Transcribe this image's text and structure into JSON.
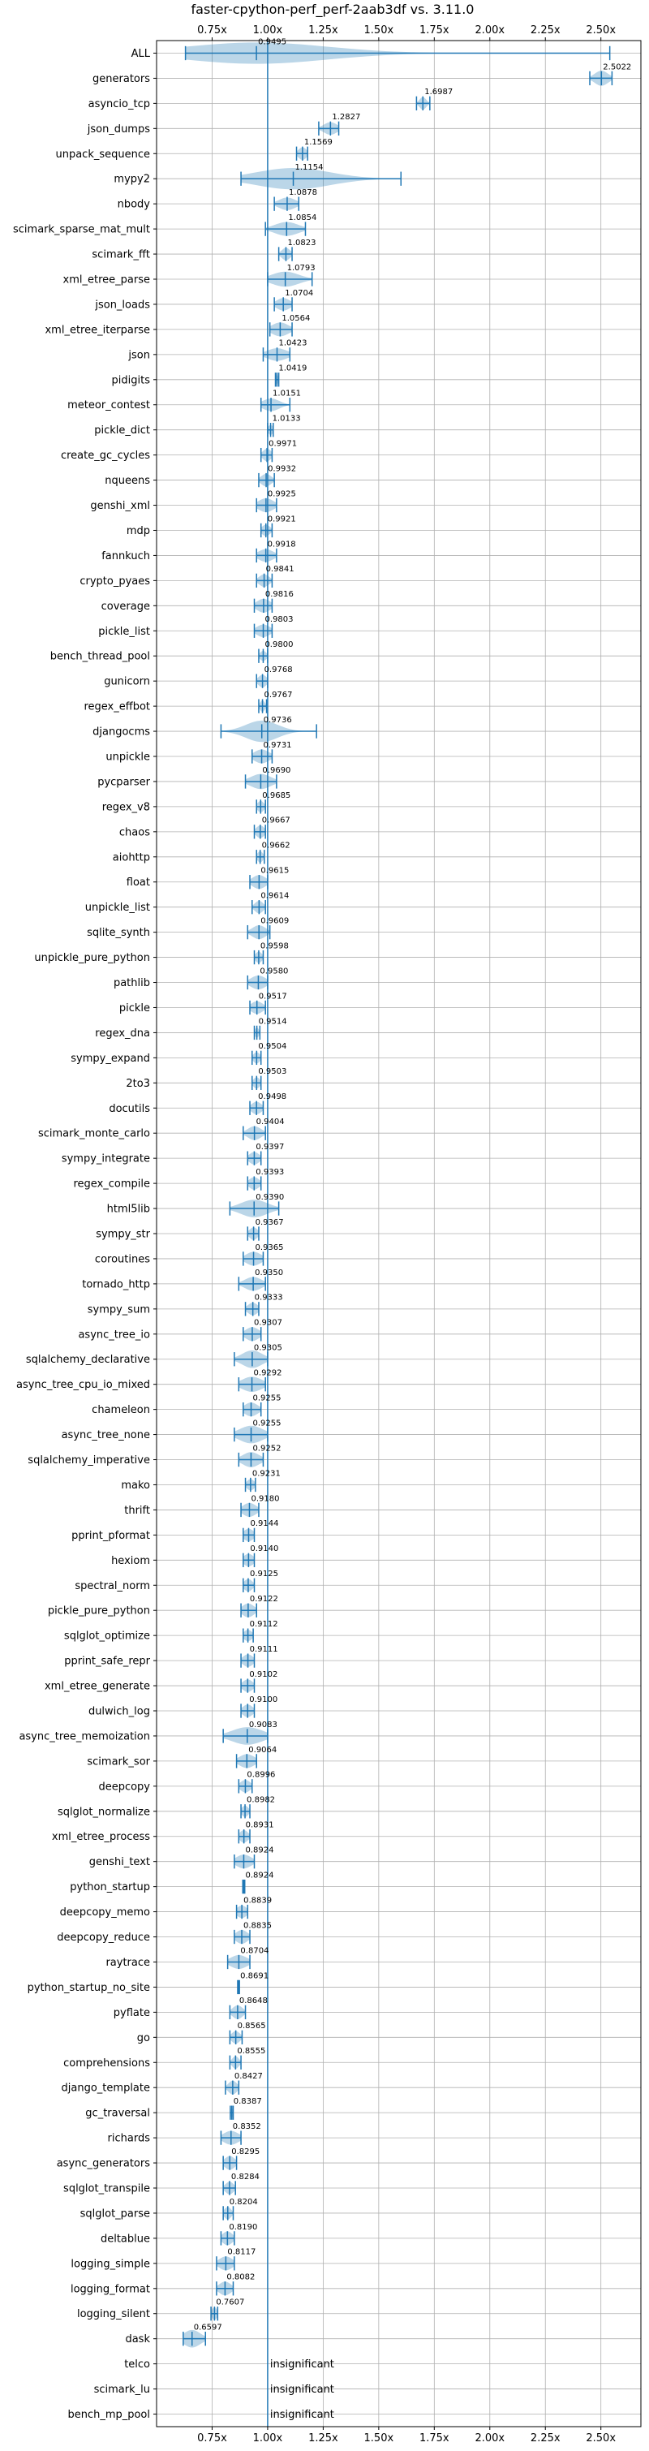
{
  "chart_data": {
    "type": "violin",
    "title": "faster-cpython-perf_perf-2aab3df vs. 3.11.0",
    "xlabel": "",
    "ylabel": "",
    "xlim": [
      0.5,
      2.68
    ],
    "xticks": [
      0.75,
      1.0,
      1.25,
      1.5,
      1.75,
      2.0,
      2.25,
      2.5
    ],
    "xtick_labels": [
      "0.75x",
      "1.00x",
      "1.25x",
      "1.50x",
      "1.75x",
      "2.00x",
      "2.25x",
      "2.50x"
    ],
    "reference_line": 1.0,
    "grid": true,
    "benchmarks": [
      {
        "name": "ALL",
        "median": 0.9495,
        "min": 0.63,
        "max": 2.54,
        "q1": 0.9,
        "q3": 1.0,
        "width": 0.85
      },
      {
        "name": "generators",
        "median": 2.5022,
        "min": 2.45,
        "max": 2.55,
        "q1": 2.48,
        "q3": 2.52,
        "width": 0.6
      },
      {
        "name": "asyncio_tcp",
        "median": 1.6987,
        "min": 1.67,
        "max": 1.73,
        "q1": 1.69,
        "q3": 1.71,
        "width": 0.5
      },
      {
        "name": "json_dumps",
        "median": 1.2827,
        "min": 1.23,
        "max": 1.32,
        "q1": 1.26,
        "q3": 1.3,
        "width": 0.5
      },
      {
        "name": "unpack_sequence",
        "median": 1.1569,
        "min": 1.13,
        "max": 1.18,
        "q1": 1.145,
        "q3": 1.17,
        "width": 0.5
      },
      {
        "name": "mypy2",
        "median": 1.1154,
        "min": 0.88,
        "max": 1.6,
        "q1": 0.98,
        "q3": 1.2,
        "width": 0.85
      },
      {
        "name": "nbody",
        "median": 1.0878,
        "min": 1.03,
        "max": 1.14,
        "q1": 1.06,
        "q3": 1.11,
        "width": 0.5
      },
      {
        "name": "scimark_sparse_mat_mult",
        "median": 1.0854,
        "min": 0.99,
        "max": 1.17,
        "q1": 1.05,
        "q3": 1.12,
        "width": 0.55
      },
      {
        "name": "scimark_fft",
        "median": 1.0823,
        "min": 1.05,
        "max": 1.11,
        "q1": 1.07,
        "q3": 1.095,
        "width": 0.5
      },
      {
        "name": "xml_etree_parse",
        "median": 1.0793,
        "min": 1.0,
        "max": 1.2,
        "q1": 1.04,
        "q3": 1.12,
        "width": 0.6
      },
      {
        "name": "json_loads",
        "median": 1.0704,
        "min": 1.03,
        "max": 1.11,
        "q1": 1.05,
        "q3": 1.09,
        "width": 0.5
      },
      {
        "name": "xml_etree_iterparse",
        "median": 1.0564,
        "min": 1.01,
        "max": 1.11,
        "q1": 1.03,
        "q3": 1.08,
        "width": 0.55
      },
      {
        "name": "json",
        "median": 1.0423,
        "min": 0.98,
        "max": 1.1,
        "q1": 1.01,
        "q3": 1.07,
        "width": 0.5
      },
      {
        "name": "pidigits",
        "median": 1.0419,
        "min": 1.035,
        "max": 1.05,
        "q1": 1.038,
        "q3": 1.046,
        "width": 0.4
      },
      {
        "name": "meteor_contest",
        "median": 1.0151,
        "min": 0.97,
        "max": 1.1,
        "q1": 0.99,
        "q3": 1.04,
        "width": 0.5
      },
      {
        "name": "pickle_dict",
        "median": 1.0133,
        "min": 1.0,
        "max": 1.025,
        "q1": 1.005,
        "q3": 1.02,
        "width": 0.4
      },
      {
        "name": "create_gc_cycles",
        "median": 0.9971,
        "min": 0.97,
        "max": 1.02,
        "q1": 0.985,
        "q3": 1.01,
        "width": 0.5
      },
      {
        "name": "nqueens",
        "median": 0.9932,
        "min": 0.96,
        "max": 1.03,
        "q1": 0.98,
        "q3": 1.01,
        "width": 0.5
      },
      {
        "name": "genshi_xml",
        "median": 0.9925,
        "min": 0.95,
        "max": 1.04,
        "q1": 0.97,
        "q3": 1.015,
        "width": 0.55
      },
      {
        "name": "mdp",
        "median": 0.9921,
        "min": 0.97,
        "max": 1.02,
        "q1": 0.98,
        "q3": 1.005,
        "width": 0.45
      },
      {
        "name": "fannkuch",
        "median": 0.9918,
        "min": 0.95,
        "max": 1.04,
        "q1": 0.97,
        "q3": 1.015,
        "width": 0.5
      },
      {
        "name": "crypto_pyaes",
        "median": 0.9841,
        "min": 0.95,
        "max": 1.02,
        "q1": 0.97,
        "q3": 1.0,
        "width": 0.5
      },
      {
        "name": "coverage",
        "median": 0.9816,
        "min": 0.94,
        "max": 1.02,
        "q1": 0.96,
        "q3": 1.0,
        "width": 0.55
      },
      {
        "name": "pickle_list",
        "median": 0.9803,
        "min": 0.94,
        "max": 1.02,
        "q1": 0.96,
        "q3": 1.0,
        "width": 0.5
      },
      {
        "name": "bench_thread_pool",
        "median": 0.98,
        "min": 0.96,
        "max": 1.0,
        "q1": 0.97,
        "q3": 0.99,
        "width": 0.4
      },
      {
        "name": "gunicorn",
        "median": 0.9768,
        "min": 0.95,
        "max": 1.0,
        "q1": 0.965,
        "q3": 0.99,
        "width": 0.5
      },
      {
        "name": "regex_effbot",
        "median": 0.9767,
        "min": 0.96,
        "max": 0.995,
        "q1": 0.97,
        "q3": 0.985,
        "width": 0.45
      },
      {
        "name": "djangocms",
        "median": 0.9736,
        "min": 0.79,
        "max": 1.22,
        "q1": 0.93,
        "q3": 1.02,
        "width": 0.85
      },
      {
        "name": "unpickle",
        "median": 0.9731,
        "min": 0.93,
        "max": 1.02,
        "q1": 0.95,
        "q3": 0.995,
        "width": 0.55
      },
      {
        "name": "pycparser",
        "median": 0.969,
        "min": 0.9,
        "max": 1.04,
        "q1": 0.94,
        "q3": 1.0,
        "width": 0.6
      },
      {
        "name": "regex_v8",
        "median": 0.9685,
        "min": 0.95,
        "max": 0.99,
        "q1": 0.96,
        "q3": 0.98,
        "width": 0.45
      },
      {
        "name": "chaos",
        "median": 0.9667,
        "min": 0.94,
        "max": 0.99,
        "q1": 0.955,
        "q3": 0.98,
        "width": 0.5
      },
      {
        "name": "aiohttp",
        "median": 0.9662,
        "min": 0.95,
        "max": 0.985,
        "q1": 0.958,
        "q3": 0.975,
        "width": 0.45
      },
      {
        "name": "float",
        "median": 0.9615,
        "min": 0.92,
        "max": 1.0,
        "q1": 0.94,
        "q3": 0.98,
        "width": 0.55
      },
      {
        "name": "unpickle_list",
        "median": 0.9614,
        "min": 0.93,
        "max": 0.99,
        "q1": 0.95,
        "q3": 0.975,
        "width": 0.5
      },
      {
        "name": "sqlite_synth",
        "median": 0.9609,
        "min": 0.91,
        "max": 1.01,
        "q1": 0.94,
        "q3": 0.98,
        "width": 0.55
      },
      {
        "name": "unpickle_pure_python",
        "median": 0.9598,
        "min": 0.94,
        "max": 0.98,
        "q1": 0.95,
        "q3": 0.97,
        "width": 0.45
      },
      {
        "name": "pathlib",
        "median": 0.958,
        "min": 0.91,
        "max": 1.0,
        "q1": 0.935,
        "q3": 0.98,
        "width": 0.55
      },
      {
        "name": "pickle",
        "median": 0.9517,
        "min": 0.92,
        "max": 0.99,
        "q1": 0.935,
        "q3": 0.97,
        "width": 0.5
      },
      {
        "name": "regex_dna",
        "median": 0.9514,
        "min": 0.94,
        "max": 0.965,
        "q1": 0.945,
        "q3": 0.958,
        "width": 0.4
      },
      {
        "name": "sympy_expand",
        "median": 0.9504,
        "min": 0.93,
        "max": 0.97,
        "q1": 0.94,
        "q3": 0.96,
        "width": 0.45
      },
      {
        "name": "2to3",
        "median": 0.9503,
        "min": 0.93,
        "max": 0.97,
        "q1": 0.94,
        "q3": 0.96,
        "width": 0.45
      },
      {
        "name": "docutils",
        "median": 0.9498,
        "min": 0.92,
        "max": 0.98,
        "q1": 0.935,
        "q3": 0.965,
        "width": 0.5
      },
      {
        "name": "scimark_monte_carlo",
        "median": 0.9404,
        "min": 0.89,
        "max": 0.99,
        "q1": 0.92,
        "q3": 0.96,
        "width": 0.55
      },
      {
        "name": "sympy_integrate",
        "median": 0.9397,
        "min": 0.91,
        "max": 0.97,
        "q1": 0.925,
        "q3": 0.955,
        "width": 0.5
      },
      {
        "name": "regex_compile",
        "median": 0.9393,
        "min": 0.91,
        "max": 0.97,
        "q1": 0.925,
        "q3": 0.955,
        "width": 0.5
      },
      {
        "name": "html5lib",
        "median": 0.939,
        "min": 0.83,
        "max": 1.05,
        "q1": 0.9,
        "q3": 0.98,
        "width": 0.7
      },
      {
        "name": "sympy_str",
        "median": 0.9367,
        "min": 0.91,
        "max": 0.96,
        "q1": 0.925,
        "q3": 0.95,
        "width": 0.5
      },
      {
        "name": "coroutines",
        "median": 0.9365,
        "min": 0.89,
        "max": 0.98,
        "q1": 0.915,
        "q3": 0.96,
        "width": 0.55
      },
      {
        "name": "tornado_http",
        "median": 0.935,
        "min": 0.87,
        "max": 0.99,
        "q1": 0.91,
        "q3": 0.96,
        "width": 0.55
      },
      {
        "name": "sympy_sum",
        "median": 0.9333,
        "min": 0.9,
        "max": 0.96,
        "q1": 0.92,
        "q3": 0.95,
        "width": 0.5
      },
      {
        "name": "async_tree_io",
        "median": 0.9307,
        "min": 0.89,
        "max": 0.97,
        "q1": 0.91,
        "q3": 0.95,
        "width": 0.55
      },
      {
        "name": "sqlalchemy_declarative",
        "median": 0.9305,
        "min": 0.85,
        "max": 1.0,
        "q1": 0.9,
        "q3": 0.96,
        "width": 0.7
      },
      {
        "name": "async_tree_cpu_io_mixed",
        "median": 0.9292,
        "min": 0.87,
        "max": 0.99,
        "q1": 0.9,
        "q3": 0.96,
        "width": 0.6
      },
      {
        "name": "chameleon",
        "median": 0.9255,
        "min": 0.89,
        "max": 0.97,
        "q1": 0.905,
        "q3": 0.945,
        "width": 0.55
      },
      {
        "name": "async_tree_none",
        "median": 0.9255,
        "min": 0.85,
        "max": 1.0,
        "q1": 0.89,
        "q3": 0.96,
        "width": 0.7
      },
      {
        "name": "sqlalchemy_imperative",
        "median": 0.9252,
        "min": 0.87,
        "max": 0.98,
        "q1": 0.9,
        "q3": 0.95,
        "width": 0.6
      },
      {
        "name": "mako",
        "median": 0.9231,
        "min": 0.9,
        "max": 0.945,
        "q1": 0.912,
        "q3": 0.935,
        "width": 0.45
      },
      {
        "name": "thrift",
        "median": 0.918,
        "min": 0.88,
        "max": 0.96,
        "q1": 0.9,
        "q3": 0.94,
        "width": 0.55
      },
      {
        "name": "pprint_pformat",
        "median": 0.9144,
        "min": 0.89,
        "max": 0.94,
        "q1": 0.9,
        "q3": 0.93,
        "width": 0.5
      },
      {
        "name": "hexiom",
        "median": 0.914,
        "min": 0.89,
        "max": 0.94,
        "q1": 0.9,
        "q3": 0.93,
        "width": 0.5
      },
      {
        "name": "spectral_norm",
        "median": 0.9125,
        "min": 0.89,
        "max": 0.94,
        "q1": 0.9,
        "q3": 0.925,
        "width": 0.5
      },
      {
        "name": "pickle_pure_python",
        "median": 0.9122,
        "min": 0.88,
        "max": 0.95,
        "q1": 0.895,
        "q3": 0.93,
        "width": 0.55
      },
      {
        "name": "sqlglot_optimize",
        "median": 0.9112,
        "min": 0.89,
        "max": 0.935,
        "q1": 0.9,
        "q3": 0.925,
        "width": 0.45
      },
      {
        "name": "pprint_safe_repr",
        "median": 0.9111,
        "min": 0.88,
        "max": 0.94,
        "q1": 0.895,
        "q3": 0.925,
        "width": 0.5
      },
      {
        "name": "xml_etree_generate",
        "median": 0.9102,
        "min": 0.88,
        "max": 0.94,
        "q1": 0.895,
        "q3": 0.925,
        "width": 0.5
      },
      {
        "name": "dulwich_log",
        "median": 0.91,
        "min": 0.88,
        "max": 0.94,
        "q1": 0.895,
        "q3": 0.925,
        "width": 0.5
      },
      {
        "name": "async_tree_memoization",
        "median": 0.9083,
        "min": 0.8,
        "max": 1.0,
        "q1": 0.86,
        "q3": 0.95,
        "width": 0.7
      },
      {
        "name": "scimark_sor",
        "median": 0.9064,
        "min": 0.86,
        "max": 0.95,
        "q1": 0.885,
        "q3": 0.93,
        "width": 0.55
      },
      {
        "name": "deepcopy",
        "median": 0.8996,
        "min": 0.87,
        "max": 0.93,
        "q1": 0.885,
        "q3": 0.915,
        "width": 0.5
      },
      {
        "name": "sqlglot_normalize",
        "median": 0.8982,
        "min": 0.88,
        "max": 0.92,
        "q1": 0.89,
        "q3": 0.91,
        "width": 0.45
      },
      {
        "name": "xml_etree_process",
        "median": 0.8931,
        "min": 0.87,
        "max": 0.92,
        "q1": 0.88,
        "q3": 0.905,
        "width": 0.5
      },
      {
        "name": "genshi_text",
        "median": 0.8924,
        "min": 0.85,
        "max": 0.94,
        "q1": 0.87,
        "q3": 0.915,
        "width": 0.55
      },
      {
        "name": "python_startup",
        "median": 0.8924,
        "min": 0.888,
        "max": 0.897,
        "q1": 0.89,
        "q3": 0.895,
        "width": 0.35
      },
      {
        "name": "deepcopy_memo",
        "median": 0.8839,
        "min": 0.86,
        "max": 0.91,
        "q1": 0.87,
        "q3": 0.9,
        "width": 0.5
      },
      {
        "name": "deepcopy_reduce",
        "median": 0.8835,
        "min": 0.85,
        "max": 0.92,
        "q1": 0.865,
        "q3": 0.9,
        "width": 0.55
      },
      {
        "name": "raytrace",
        "median": 0.8704,
        "min": 0.82,
        "max": 0.92,
        "q1": 0.845,
        "q3": 0.895,
        "width": 0.55
      },
      {
        "name": "python_startup_no_site",
        "median": 0.8691,
        "min": 0.865,
        "max": 0.873,
        "q1": 0.867,
        "q3": 0.871,
        "width": 0.35
      },
      {
        "name": "pyflate",
        "median": 0.8648,
        "min": 0.83,
        "max": 0.9,
        "q1": 0.85,
        "q3": 0.88,
        "width": 0.55
      },
      {
        "name": "go",
        "median": 0.8565,
        "min": 0.83,
        "max": 0.885,
        "q1": 0.845,
        "q3": 0.87,
        "width": 0.5
      },
      {
        "name": "comprehensions",
        "median": 0.8555,
        "min": 0.83,
        "max": 0.88,
        "q1": 0.845,
        "q3": 0.865,
        "width": 0.5
      },
      {
        "name": "django_template",
        "median": 0.8427,
        "min": 0.81,
        "max": 0.87,
        "q1": 0.83,
        "q3": 0.855,
        "width": 0.55
      },
      {
        "name": "gc_traversal",
        "median": 0.8387,
        "min": 0.832,
        "max": 0.845,
        "q1": 0.835,
        "q3": 0.842,
        "width": 0.4
      },
      {
        "name": "richards",
        "median": 0.8352,
        "min": 0.79,
        "max": 0.88,
        "q1": 0.815,
        "q3": 0.86,
        "width": 0.55
      },
      {
        "name": "async_generators",
        "median": 0.8295,
        "min": 0.8,
        "max": 0.86,
        "q1": 0.815,
        "q3": 0.845,
        "width": 0.55
      },
      {
        "name": "sqlglot_transpile",
        "median": 0.8284,
        "min": 0.8,
        "max": 0.855,
        "q1": 0.815,
        "q3": 0.84,
        "width": 0.5
      },
      {
        "name": "sqlglot_parse",
        "median": 0.8204,
        "min": 0.8,
        "max": 0.845,
        "q1": 0.81,
        "q3": 0.83,
        "width": 0.5
      },
      {
        "name": "deltablue",
        "median": 0.819,
        "min": 0.79,
        "max": 0.85,
        "q1": 0.805,
        "q3": 0.835,
        "width": 0.55
      },
      {
        "name": "logging_simple",
        "median": 0.8117,
        "min": 0.77,
        "max": 0.85,
        "q1": 0.79,
        "q3": 0.83,
        "width": 0.55
      },
      {
        "name": "logging_format",
        "median": 0.8082,
        "min": 0.77,
        "max": 0.845,
        "q1": 0.79,
        "q3": 0.825,
        "width": 0.55
      },
      {
        "name": "logging_silent",
        "median": 0.7607,
        "min": 0.745,
        "max": 0.775,
        "q1": 0.752,
        "q3": 0.768,
        "width": 0.5
      },
      {
        "name": "dask",
        "median": 0.6597,
        "min": 0.62,
        "max": 0.72,
        "q1": 0.64,
        "q3": 0.69,
        "width": 0.7
      },
      {
        "name": "telco",
        "insignificant": true
      },
      {
        "name": "scimark_lu",
        "insignificant": true
      },
      {
        "name": "bench_mp_pool",
        "insignificant": true
      }
    ],
    "insignificant_label": "insignificant",
    "colors": {
      "violin_fill": "#1f77b4",
      "violin_alpha": 0.3,
      "whisker": "#1f77b4",
      "reference_line": "#1f77b4",
      "grid": "#b0b0b0"
    }
  }
}
